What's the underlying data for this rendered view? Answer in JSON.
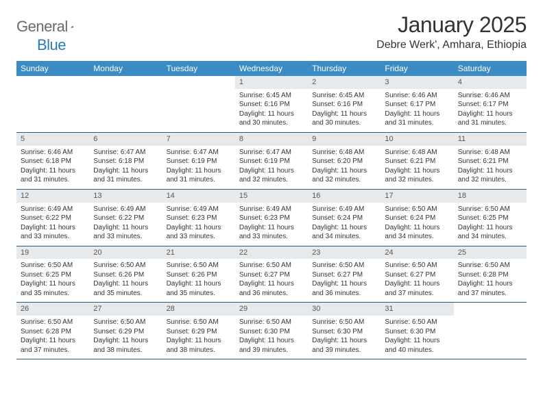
{
  "logo": {
    "text1": "General",
    "text2": "Blue"
  },
  "title": "January 2025",
  "location": "Debre Werk', Amhara, Ethiopia",
  "colors": {
    "header_bg": "#3b8bc4",
    "header_text": "#ffffff",
    "daynum_bg": "#e6eaed",
    "body_text": "#333333",
    "rule": "#2a5a80",
    "logo_gray": "#6a6a6a",
    "logo_blue": "#2a7ab8"
  },
  "weekdays": [
    "Sunday",
    "Monday",
    "Tuesday",
    "Wednesday",
    "Thursday",
    "Friday",
    "Saturday"
  ],
  "weeks": [
    [
      null,
      null,
      null,
      {
        "n": "1",
        "sr": "Sunrise: 6:45 AM",
        "ss": "Sunset: 6:16 PM",
        "dl": "Daylight: 11 hours and 30 minutes."
      },
      {
        "n": "2",
        "sr": "Sunrise: 6:45 AM",
        "ss": "Sunset: 6:16 PM",
        "dl": "Daylight: 11 hours and 30 minutes."
      },
      {
        "n": "3",
        "sr": "Sunrise: 6:46 AM",
        "ss": "Sunset: 6:17 PM",
        "dl": "Daylight: 11 hours and 31 minutes."
      },
      {
        "n": "4",
        "sr": "Sunrise: 6:46 AM",
        "ss": "Sunset: 6:17 PM",
        "dl": "Daylight: 11 hours and 31 minutes."
      }
    ],
    [
      {
        "n": "5",
        "sr": "Sunrise: 6:46 AM",
        "ss": "Sunset: 6:18 PM",
        "dl": "Daylight: 11 hours and 31 minutes."
      },
      {
        "n": "6",
        "sr": "Sunrise: 6:47 AM",
        "ss": "Sunset: 6:18 PM",
        "dl": "Daylight: 11 hours and 31 minutes."
      },
      {
        "n": "7",
        "sr": "Sunrise: 6:47 AM",
        "ss": "Sunset: 6:19 PM",
        "dl": "Daylight: 11 hours and 31 minutes."
      },
      {
        "n": "8",
        "sr": "Sunrise: 6:47 AM",
        "ss": "Sunset: 6:19 PM",
        "dl": "Daylight: 11 hours and 32 minutes."
      },
      {
        "n": "9",
        "sr": "Sunrise: 6:48 AM",
        "ss": "Sunset: 6:20 PM",
        "dl": "Daylight: 11 hours and 32 minutes."
      },
      {
        "n": "10",
        "sr": "Sunrise: 6:48 AM",
        "ss": "Sunset: 6:21 PM",
        "dl": "Daylight: 11 hours and 32 minutes."
      },
      {
        "n": "11",
        "sr": "Sunrise: 6:48 AM",
        "ss": "Sunset: 6:21 PM",
        "dl": "Daylight: 11 hours and 32 minutes."
      }
    ],
    [
      {
        "n": "12",
        "sr": "Sunrise: 6:49 AM",
        "ss": "Sunset: 6:22 PM",
        "dl": "Daylight: 11 hours and 33 minutes."
      },
      {
        "n": "13",
        "sr": "Sunrise: 6:49 AM",
        "ss": "Sunset: 6:22 PM",
        "dl": "Daylight: 11 hours and 33 minutes."
      },
      {
        "n": "14",
        "sr": "Sunrise: 6:49 AM",
        "ss": "Sunset: 6:23 PM",
        "dl": "Daylight: 11 hours and 33 minutes."
      },
      {
        "n": "15",
        "sr": "Sunrise: 6:49 AM",
        "ss": "Sunset: 6:23 PM",
        "dl": "Daylight: 11 hours and 33 minutes."
      },
      {
        "n": "16",
        "sr": "Sunrise: 6:49 AM",
        "ss": "Sunset: 6:24 PM",
        "dl": "Daylight: 11 hours and 34 minutes."
      },
      {
        "n": "17",
        "sr": "Sunrise: 6:50 AM",
        "ss": "Sunset: 6:24 PM",
        "dl": "Daylight: 11 hours and 34 minutes."
      },
      {
        "n": "18",
        "sr": "Sunrise: 6:50 AM",
        "ss": "Sunset: 6:25 PM",
        "dl": "Daylight: 11 hours and 34 minutes."
      }
    ],
    [
      {
        "n": "19",
        "sr": "Sunrise: 6:50 AM",
        "ss": "Sunset: 6:25 PM",
        "dl": "Daylight: 11 hours and 35 minutes."
      },
      {
        "n": "20",
        "sr": "Sunrise: 6:50 AM",
        "ss": "Sunset: 6:26 PM",
        "dl": "Daylight: 11 hours and 35 minutes."
      },
      {
        "n": "21",
        "sr": "Sunrise: 6:50 AM",
        "ss": "Sunset: 6:26 PM",
        "dl": "Daylight: 11 hours and 35 minutes."
      },
      {
        "n": "22",
        "sr": "Sunrise: 6:50 AM",
        "ss": "Sunset: 6:27 PM",
        "dl": "Daylight: 11 hours and 36 minutes."
      },
      {
        "n": "23",
        "sr": "Sunrise: 6:50 AM",
        "ss": "Sunset: 6:27 PM",
        "dl": "Daylight: 11 hours and 36 minutes."
      },
      {
        "n": "24",
        "sr": "Sunrise: 6:50 AM",
        "ss": "Sunset: 6:27 PM",
        "dl": "Daylight: 11 hours and 37 minutes."
      },
      {
        "n": "25",
        "sr": "Sunrise: 6:50 AM",
        "ss": "Sunset: 6:28 PM",
        "dl": "Daylight: 11 hours and 37 minutes."
      }
    ],
    [
      {
        "n": "26",
        "sr": "Sunrise: 6:50 AM",
        "ss": "Sunset: 6:28 PM",
        "dl": "Daylight: 11 hours and 37 minutes."
      },
      {
        "n": "27",
        "sr": "Sunrise: 6:50 AM",
        "ss": "Sunset: 6:29 PM",
        "dl": "Daylight: 11 hours and 38 minutes."
      },
      {
        "n": "28",
        "sr": "Sunrise: 6:50 AM",
        "ss": "Sunset: 6:29 PM",
        "dl": "Daylight: 11 hours and 38 minutes."
      },
      {
        "n": "29",
        "sr": "Sunrise: 6:50 AM",
        "ss": "Sunset: 6:30 PM",
        "dl": "Daylight: 11 hours and 39 minutes."
      },
      {
        "n": "30",
        "sr": "Sunrise: 6:50 AM",
        "ss": "Sunset: 6:30 PM",
        "dl": "Daylight: 11 hours and 39 minutes."
      },
      {
        "n": "31",
        "sr": "Sunrise: 6:50 AM",
        "ss": "Sunset: 6:30 PM",
        "dl": "Daylight: 11 hours and 40 minutes."
      },
      null
    ]
  ]
}
